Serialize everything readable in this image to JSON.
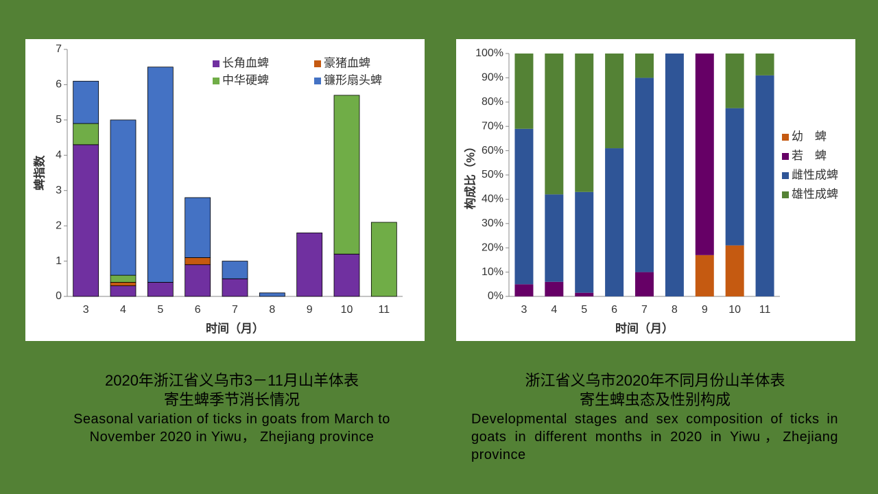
{
  "chart_data": [
    {
      "type": "stacked_bar",
      "xlabel": "时间（月）",
      "ylabel": "蜱指数",
      "categories": [
        "3",
        "4",
        "5",
        "6",
        "7",
        "8",
        "9",
        "10",
        "11"
      ],
      "series": [
        {
          "name": "长角血蜱",
          "color": "#7030a0",
          "values": [
            4.3,
            0.3,
            0.4,
            0.9,
            0.5,
            0,
            1.8,
            1.2,
            0
          ]
        },
        {
          "name": "豪猪血蜱",
          "color": "#c55a11",
          "values": [
            0,
            0.1,
            0,
            0.2,
            0,
            0,
            0,
            0,
            0
          ]
        },
        {
          "name": "中华硬蜱",
          "color": "#70ad47",
          "values": [
            0.6,
            0.2,
            0,
            0,
            0,
            0,
            0,
            4.5,
            2.1
          ]
        },
        {
          "name": "镰形扇头蜱",
          "color": "#4472c4",
          "values": [
            1.2,
            4.4,
            6.1,
            1.7,
            0.5,
            0.1,
            0,
            0,
            0
          ]
        }
      ],
      "ylim": [
        0,
        7
      ],
      "yticks": [
        0,
        1,
        2,
        3,
        4,
        5,
        6,
        7
      ],
      "edgecolor": "#000000",
      "legend": "upper right",
      "caption": {
        "zh": [
          "2020年浙江省义乌市3－11月山羊体表",
          "寄生蜱季节消长情况"
        ],
        "en": "Seasonal variation of ticks in goats from March to November 2020 in Yiwu， Zhejiang province"
      }
    },
    {
      "type": "stacked_bar",
      "xlabel": "时间（月）",
      "ylabel": "构成比（%）",
      "categories": [
        "3",
        "4",
        "5",
        "6",
        "7",
        "8",
        "9",
        "10",
        "11"
      ],
      "series": [
        {
          "name": "幼　蜱",
          "color": "#c55a11",
          "values": [
            0,
            0,
            0,
            0,
            0,
            0,
            17,
            21,
            0
          ]
        },
        {
          "name": "若　蜱",
          "color": "#660066",
          "values": [
            5,
            6,
            1.5,
            0,
            10,
            0,
            83,
            0,
            0
          ]
        },
        {
          "name": "雌性成蜱",
          "color": "#2f5597",
          "values": [
            64,
            36,
            41.5,
            61,
            80,
            100,
            0,
            56.5,
            91
          ]
        },
        {
          "name": "雄性成蜱",
          "color": "#548235",
          "values": [
            31,
            58,
            57,
            39,
            10,
            0,
            0,
            22.5,
            9
          ]
        }
      ],
      "ylim": [
        0,
        100
      ],
      "yticks": [
        {
          "value": 0,
          "label": "0%"
        },
        {
          "value": 10,
          "label": "10%"
        },
        {
          "value": 20,
          "label": "20%"
        },
        {
          "value": 30,
          "label": "30%"
        },
        {
          "value": 40,
          "label": "40%"
        },
        {
          "value": 50,
          "label": "50%"
        },
        {
          "value": 60,
          "label": "60%"
        },
        {
          "value": 70,
          "label": "70%"
        },
        {
          "value": 80,
          "label": "80%"
        },
        {
          "value": 90,
          "label": "90%"
        },
        {
          "value": 100,
          "label": "100%"
        }
      ],
      "legend": "right",
      "caption": {
        "zh": [
          "浙江省义乌市2020年不同月份山羊体表",
          "寄生蜱虫态及性别构成"
        ],
        "en": "Developmental stages and sex composition of ticks in goats in different months in 2020 in Yiwu，Zhejiang province"
      }
    }
  ]
}
